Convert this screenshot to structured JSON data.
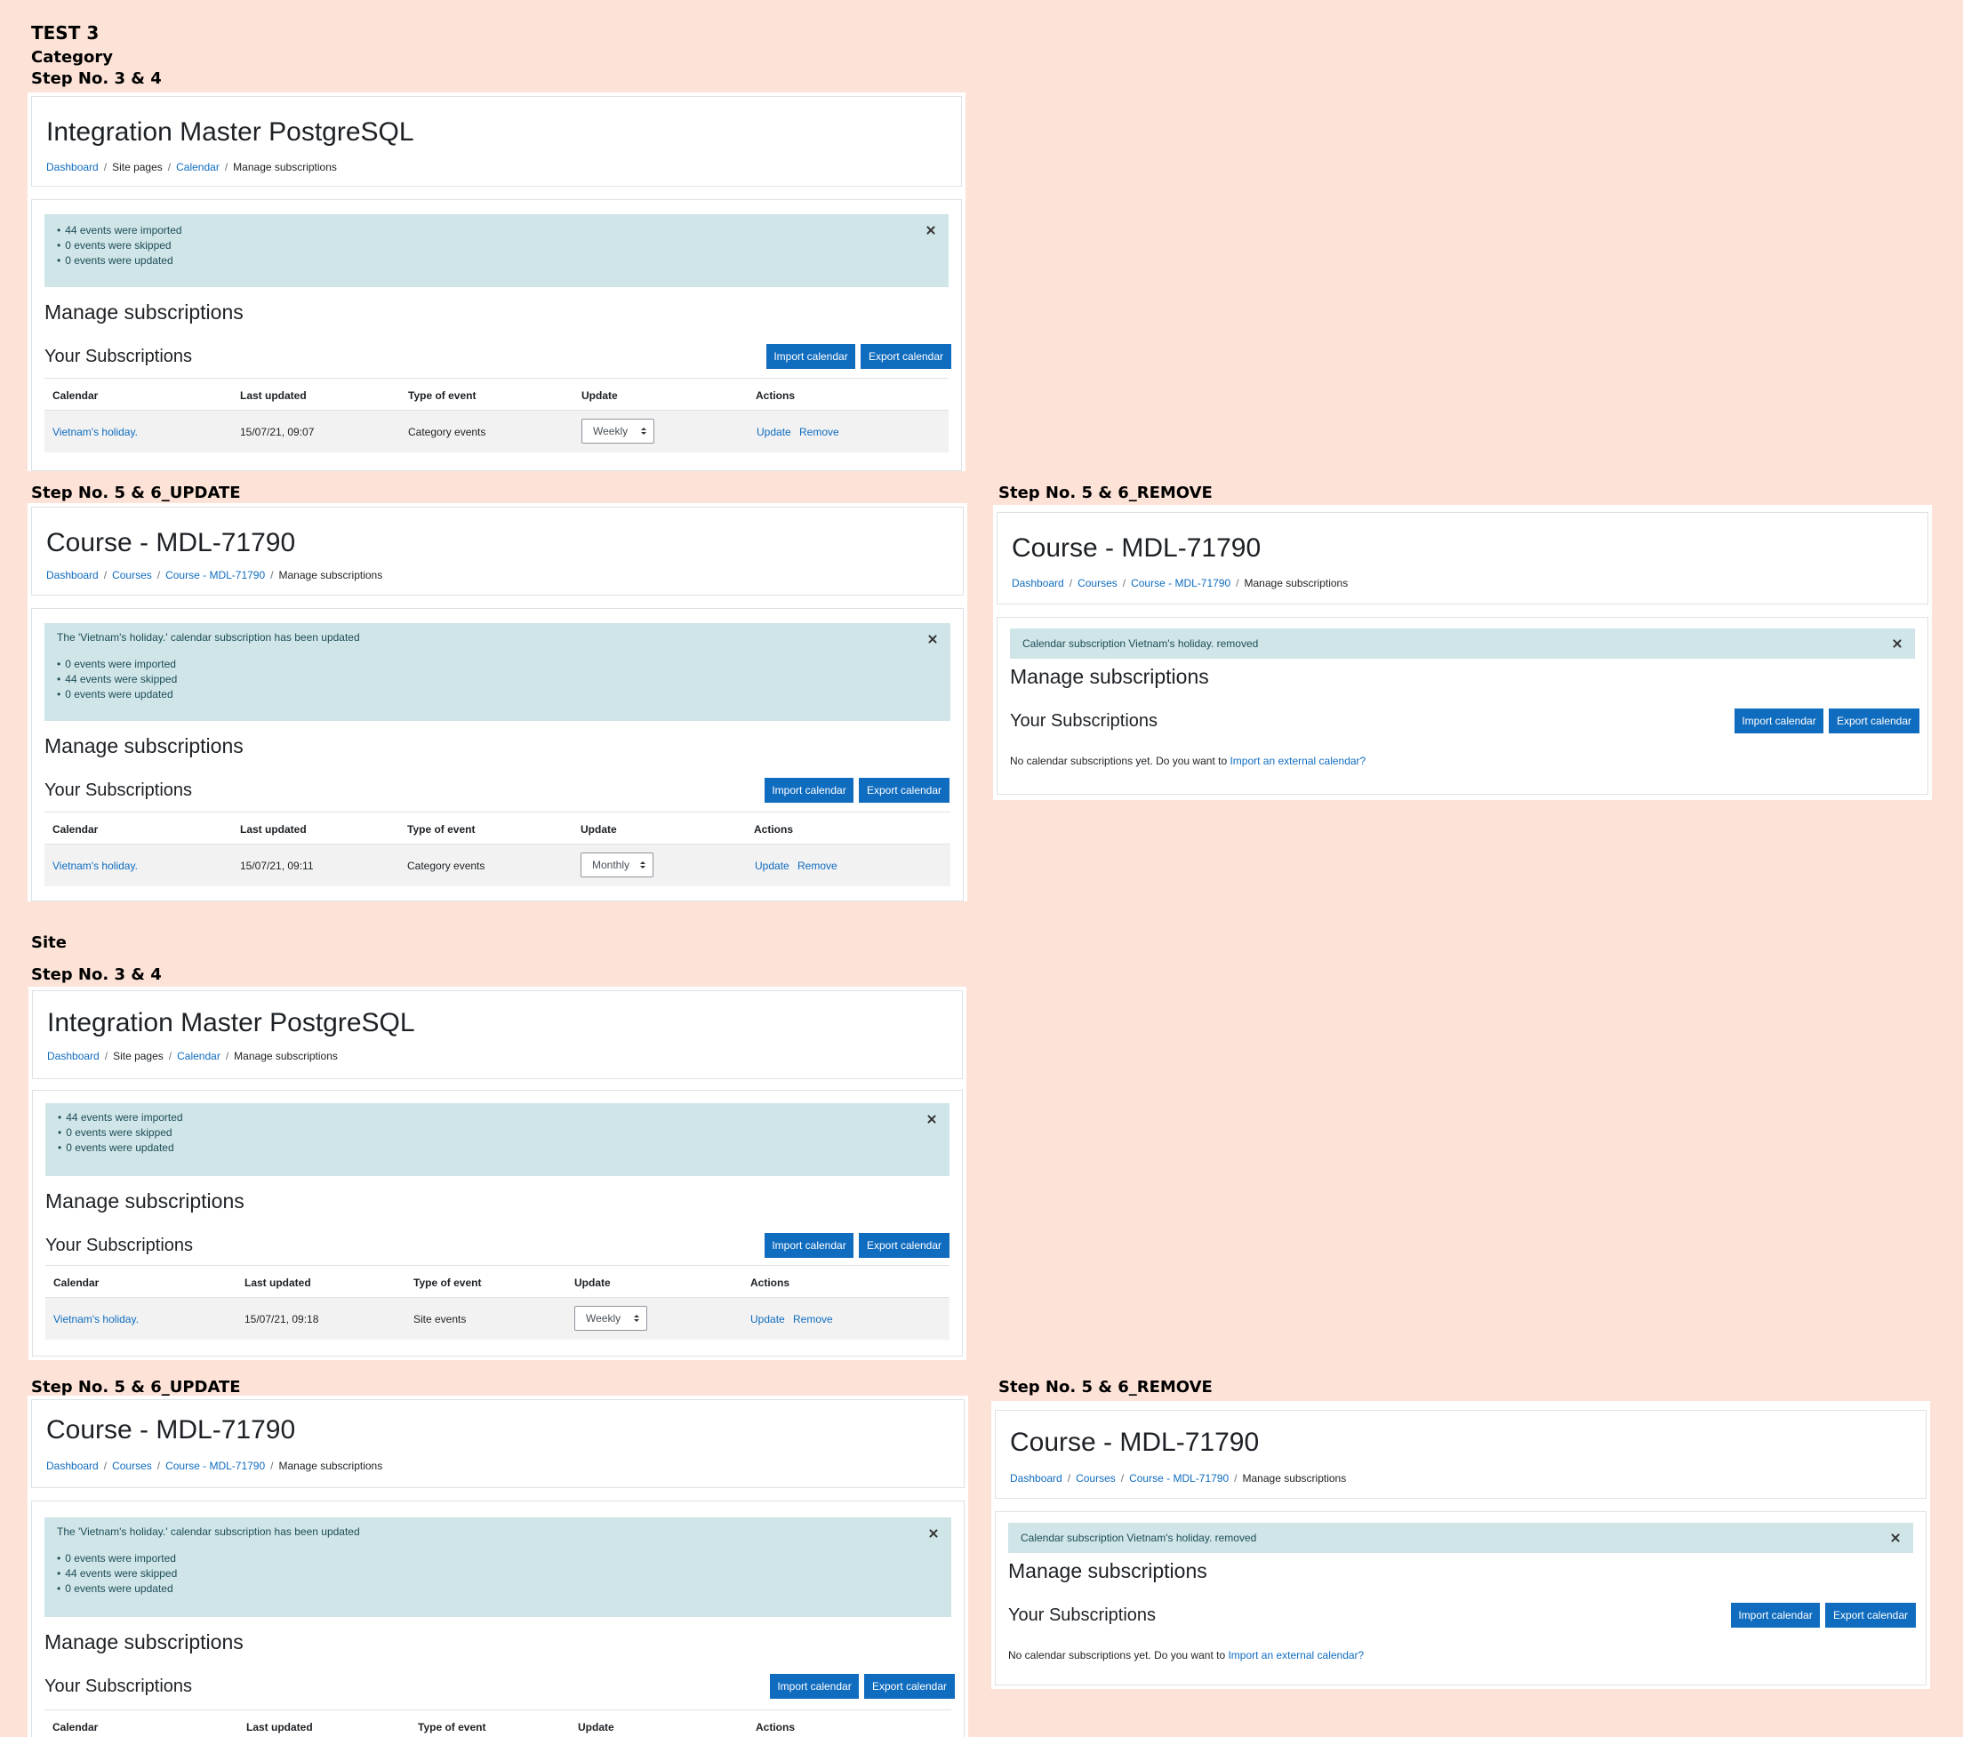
{
  "labels": {
    "test": "TEST 3",
    "category": "Category",
    "step_34": "Step No. 3 & 4",
    "step_56_update": "Step No. 5 & 6_UPDATE",
    "step_56_remove": "Step No. 5 & 6_REMOVE",
    "site": "Site"
  },
  "common": {
    "manage_title": "Manage subscriptions",
    "your_subs": "Your Subscriptions",
    "import_btn": "Import calendar",
    "export_btn": "Export calendar",
    "col_calendar": "Calendar",
    "col_last_updated": "Last updated",
    "col_type": "Type of event",
    "col_update": "Update",
    "col_actions": "Actions",
    "action_update": "Update",
    "action_remove": "Remove",
    "calendar_name": "Vietnam's holiday.",
    "sep": "/",
    "no_subs_text": "No calendar subscriptions yet. Do you want to",
    "no_subs_link": "Import an external calendar?"
  },
  "site_page": {
    "title": "Integration Master PostgreSQL",
    "crumbs": [
      "Dashboard",
      "Site pages",
      "Calendar",
      "Manage subscriptions"
    ]
  },
  "course_page": {
    "title": "Course - MDL-71790",
    "crumbs": [
      "Dashboard",
      "Courses",
      "Course - MDL-71790",
      "Manage subscriptions"
    ]
  },
  "alerts": {
    "import_lines": [
      "44 events were imported",
      "0 events were skipped",
      "0 events were updated"
    ],
    "updated_msg": "The 'Vietnam's holiday.' calendar subscription has been updated",
    "update_lines": [
      "0 events were imported",
      "44 events were skipped",
      "0 events were updated"
    ],
    "removed_msg": "Calendar subscription Vietnam's holiday. removed"
  },
  "rows": {
    "cat_import": {
      "last_updated": "15/07/21, 09:07",
      "type": "Category events",
      "update": "Weekly"
    },
    "cat_update": {
      "last_updated": "15/07/21, 09:11",
      "type": "Category events",
      "update": "Monthly"
    },
    "site_import": {
      "last_updated": "15/07/21, 09:18",
      "type": "Site events",
      "update": "Weekly"
    }
  },
  "icons": {
    "close": "close-icon",
    "select_arrows": "chevron-updown-icon"
  },
  "colors": {
    "background": "#fde3d7",
    "primary": "#0f6cbf",
    "alert_bg": "#cfe5e8",
    "alert_text": "#1e4d57"
  }
}
